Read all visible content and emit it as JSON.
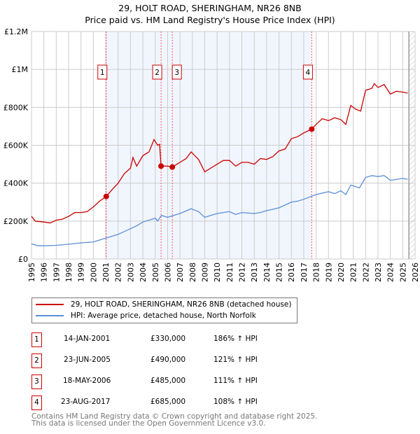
{
  "title": "29, HOLT ROAD, SHERINGHAM, NR26 8NB",
  "subtitle": "Price paid vs. HM Land Registry's House Price Index (HPI)",
  "chart_data": {
    "type": "line",
    "xlim": [
      1995,
      2026
    ],
    "ylim": [
      0,
      1200000
    ],
    "yticks": [
      {
        "v": 0,
        "label": "£0"
      },
      {
        "v": 200000,
        "label": "£200K"
      },
      {
        "v": 400000,
        "label": "£400K"
      },
      {
        "v": 600000,
        "label": "£600K"
      },
      {
        "v": 800000,
        "label": "£800K"
      },
      {
        "v": 1000000,
        "label": "£1M"
      },
      {
        "v": 1200000,
        "label": "£1.2M"
      }
    ],
    "xticks": [
      "1995",
      "1996",
      "1997",
      "1998",
      "1999",
      "2000",
      "2001",
      "2002",
      "2003",
      "2004",
      "2005",
      "2006",
      "2007",
      "2008",
      "2009",
      "2010",
      "2011",
      "2012",
      "2013",
      "2014",
      "2015",
      "2016",
      "2017",
      "2018",
      "2019",
      "2020",
      "2021",
      "2022",
      "2023",
      "2024",
      "2025",
      "2026"
    ],
    "series": [
      {
        "name": "29, HOLT ROAD, SHERINGHAM, NR26 8NB (detached house)",
        "color": "#cc0000",
        "x": [
          1995,
          1995.3,
          1996,
          1996.5,
          1997,
          1997.5,
          1998,
          1998.5,
          1999,
          1999.5,
          2000,
          2000.5,
          2001.04,
          2001.5,
          2002,
          2002.5,
          2003,
          2003.2,
          2003.5,
          2004,
          2004.5,
          2004.9,
          2005.2,
          2005.35,
          2005.47,
          2006,
          2006.38,
          2007,
          2007.5,
          2007.9,
          2008.5,
          2009,
          2009.5,
          2010,
          2010.5,
          2011,
          2011.5,
          2012,
          2012.5,
          2013,
          2013.5,
          2014,
          2014.5,
          2015,
          2015.5,
          2016,
          2016.5,
          2017,
          2017.65,
          2018,
          2018.5,
          2019,
          2019.5,
          2020,
          2020.4,
          2020.8,
          2021.2,
          2021.6,
          2022,
          2022.5,
          2022.7,
          2023,
          2023.5,
          2024,
          2024.5,
          2025,
          2025.4
        ],
        "y": [
          225000,
          200000,
          195000,
          190000,
          205000,
          210000,
          225000,
          245000,
          245000,
          250000,
          275000,
          305000,
          330000,
          365000,
          400000,
          450000,
          480000,
          535000,
          490000,
          545000,
          565000,
          630000,
          600000,
          605000,
          490000,
          490000,
          485000,
          510000,
          530000,
          565000,
          525000,
          460000,
          480000,
          500000,
          520000,
          520000,
          490000,
          510000,
          510000,
          500000,
          530000,
          525000,
          540000,
          570000,
          580000,
          635000,
          645000,
          665000,
          685000,
          710000,
          740000,
          730000,
          745000,
          735000,
          710000,
          810000,
          790000,
          780000,
          890000,
          900000,
          925000,
          905000,
          920000,
          870000,
          885000,
          880000,
          875000
        ]
      },
      {
        "name": "HPI: Average price, detached house, North Norfolk",
        "color": "#5b8fd6",
        "x": [
          1995,
          1995.5,
          1996,
          1997,
          1998,
          1999,
          2000,
          2000.5,
          2001,
          2002,
          2003,
          2003.5,
          2004,
          2005,
          2005.2,
          2005.5,
          2006,
          2007,
          2007.9,
          2008.5,
          2009,
          2010,
          2011,
          2011.5,
          2012,
          2013,
          2013.5,
          2014,
          2015,
          2016,
          2016.5,
          2017,
          2018,
          2019,
          2019.5,
          2020,
          2020.4,
          2020.8,
          2021.5,
          2022,
          2022.5,
          2023,
          2023.5,
          2024,
          2024.5,
          2025,
          2025.4
        ],
        "y": [
          80000,
          70000,
          70000,
          72000,
          78000,
          85000,
          90000,
          100000,
          110000,
          130000,
          160000,
          175000,
          195000,
          215000,
          200000,
          230000,
          220000,
          240000,
          265000,
          250000,
          220000,
          240000,
          250000,
          235000,
          245000,
          240000,
          245000,
          255000,
          270000,
          300000,
          305000,
          315000,
          340000,
          355000,
          345000,
          360000,
          340000,
          390000,
          375000,
          430000,
          440000,
          435000,
          440000,
          415000,
          420000,
          425000,
          420000
        ]
      }
    ],
    "sales": [
      {
        "n": "1",
        "x": 2001.04,
        "y": 330000,
        "date": "14-JAN-2001",
        "price": "£330,000",
        "hpi": "186% ↑ HPI"
      },
      {
        "n": "2",
        "x": 2005.47,
        "y": 490000,
        "date": "23-JUN-2005",
        "price": "£490,000",
        "hpi": "121% ↑ HPI"
      },
      {
        "n": "3",
        "x": 2006.38,
        "y": 485000,
        "date": "18-MAY-2006",
        "price": "£485,000",
        "hpi": "111% ↑ HPI"
      },
      {
        "n": "4",
        "x": 2017.65,
        "y": 685000,
        "date": "23-AUG-2017",
        "price": "£685,000",
        "hpi": "108% ↑ HPI"
      }
    ],
    "shaded_range": [
      2001.04,
      2017.65
    ],
    "forecast_from": 2025.5
  },
  "footer": [
    "Contains HM Land Registry data © Crown copyright and database right 2025.",
    "This data is licensed under the Open Government Licence v3.0."
  ]
}
